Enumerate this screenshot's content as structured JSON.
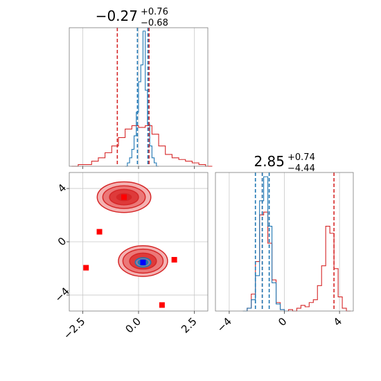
{
  "colors": {
    "red": "#d62728",
    "blue": "#1f77b4",
    "red_fill_1": "#f4b3b3",
    "red_fill_2": "#eb7878",
    "red_fill_3": "#de3a3a",
    "grid": "#c8c8c8",
    "axis": "#7a7a7a"
  },
  "chart_data": [
    {
      "id": "top-left",
      "type": "histogram",
      "title": "−0.27",
      "title_sup": "+0.76",
      "title_sub": "−0.68",
      "xlim": [
        -3.1,
        3.1
      ],
      "grid": true,
      "xticks": [
        -2.5,
        0.0,
        2.5
      ],
      "series": [
        {
          "color": "red",
          "lines": [
            -0.95,
            0.47
          ],
          "bins": [
            [
              -3.0,
              0
            ],
            [
              -2.7,
              1
            ],
            [
              -2.4,
              1
            ],
            [
              -2.1,
              3
            ],
            [
              -1.8,
              5
            ],
            [
              -1.5,
              8
            ],
            [
              -1.2,
              12
            ],
            [
              -0.9,
              17
            ],
            [
              -0.6,
              22
            ],
            [
              -0.3,
              24
            ],
            [
              0.0,
              23
            ],
            [
              0.3,
              24
            ],
            [
              0.6,
              19
            ],
            [
              0.9,
              12
            ],
            [
              1.2,
              7
            ],
            [
              1.5,
              5
            ],
            [
              1.8,
              4
            ],
            [
              2.1,
              3
            ],
            [
              2.4,
              2
            ],
            [
              2.7,
              1
            ],
            [
              3.0,
              0
            ]
          ]
        },
        {
          "color": "blue",
          "lines": [
            -0.05,
            0.42
          ],
          "bins": [
            [
              -0.6,
              0
            ],
            [
              -0.5,
              2
            ],
            [
              -0.4,
              5
            ],
            [
              -0.3,
              10
            ],
            [
              -0.2,
              18
            ],
            [
              -0.1,
              32
            ],
            [
              0.0,
              50
            ],
            [
              0.1,
              60
            ],
            [
              0.2,
              80
            ],
            [
              0.3,
              45
            ],
            [
              0.4,
              25
            ],
            [
              0.5,
              12
            ],
            [
              0.6,
              5
            ],
            [
              0.7,
              2
            ],
            [
              0.8,
              0
            ]
          ]
        }
      ]
    },
    {
      "id": "bottom-right",
      "type": "histogram",
      "title": "2.85",
      "title_sup": "+0.74",
      "title_sub": "−4.44",
      "xlim": [
        -5.0,
        5.0
      ],
      "grid": true,
      "xticks": [
        -4,
        0,
        4
      ],
      "series": [
        {
          "color": "red",
          "lines": [
            -1.6,
            3.6
          ],
          "bins": [
            [
              -3.0,
              0
            ],
            [
              -2.7,
              2
            ],
            [
              -2.4,
              12
            ],
            [
              -2.1,
              35
            ],
            [
              -1.8,
              68
            ],
            [
              -1.5,
              70
            ],
            [
              -1.2,
              48
            ],
            [
              -0.9,
              22
            ],
            [
              -0.6,
              6
            ],
            [
              -0.3,
              1
            ],
            [
              0.0,
              0
            ],
            [
              0.3,
              1
            ],
            [
              0.6,
              0
            ],
            [
              0.9,
              2
            ],
            [
              1.2,
              4
            ],
            [
              1.5,
              3
            ],
            [
              1.8,
              6
            ],
            [
              2.1,
              8
            ],
            [
              2.4,
              18
            ],
            [
              2.7,
              32
            ],
            [
              3.0,
              60
            ],
            [
              3.3,
              55
            ],
            [
              3.6,
              30
            ],
            [
              3.9,
              10
            ],
            [
              4.2,
              2
            ],
            [
              4.5,
              0
            ]
          ]
        },
        {
          "color": "blue",
          "lines": [
            -2.1,
            -1.6,
            -1.1
          ],
          "bins": [
            [
              -3.0,
              0
            ],
            [
              -2.7,
              2
            ],
            [
              -2.4,
              8
            ],
            [
              -2.1,
              25
            ],
            [
              -1.8,
              78
            ],
            [
              -1.5,
              95
            ],
            [
              -1.2,
              60
            ],
            [
              -0.9,
              20
            ],
            [
              -0.6,
              5
            ],
            [
              -0.3,
              1
            ],
            [
              0.0,
              0
            ]
          ]
        }
      ]
    },
    {
      "id": "bottom-left",
      "type": "contour-scatter",
      "xlim": [
        -3.1,
        3.1
      ],
      "ylim": [
        -5.2,
        5.2
      ],
      "grid": true,
      "xticks": [
        -2.5,
        0.0,
        2.5
      ],
      "yticks": [
        -4,
        0,
        4
      ],
      "red_modes": [
        {
          "cx": -0.65,
          "cy": 3.35,
          "rx": [
            1.2,
            0.95,
            0.65,
            0.35
          ],
          "ry": [
            1.15,
            0.85,
            0.58,
            0.3
          ]
        },
        {
          "cx": 0.2,
          "cy": -1.45,
          "rx": [
            1.1,
            0.9,
            0.6,
            0.3
          ],
          "ry": [
            1.15,
            0.9,
            0.6,
            0.3
          ]
        }
      ],
      "blue_mode": {
        "cx": 0.2,
        "cy": -1.55,
        "rx": [
          0.35,
          0.22
        ],
        "ry": [
          0.35,
          0.22
        ]
      },
      "red_markers": [
        [
          -0.65,
          3.35
        ],
        [
          -1.75,
          0.75
        ],
        [
          -2.35,
          -1.95
        ],
        [
          1.6,
          -1.35
        ],
        [
          1.05,
          -4.75
        ]
      ],
      "blue_marker": [
        0.2,
        -1.55
      ]
    }
  ]
}
